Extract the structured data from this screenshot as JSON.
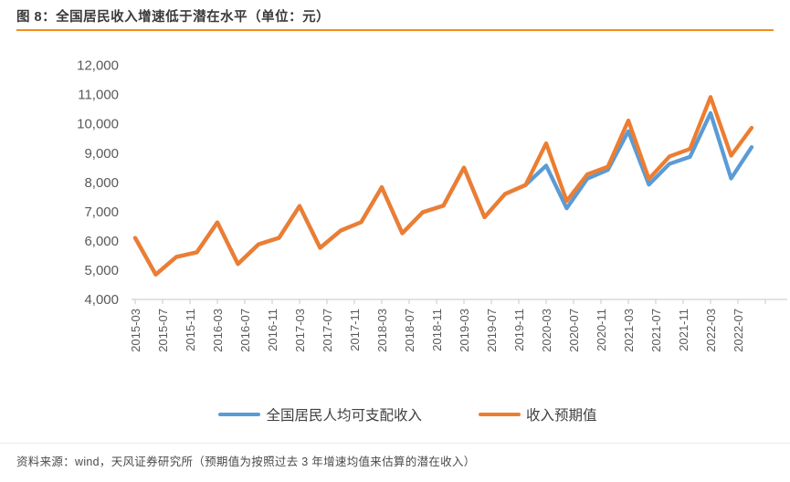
{
  "page": {
    "title": "图 8：全国居民收入增速低于潜在水平（单位：元）",
    "source_note": "资料来源：wind，天风证券研究所（预期值为按照过去 3 年增速均值来估算的潜在收入）"
  },
  "colors": {
    "actual_line": "#5B9BD5",
    "expected_line": "#ED7D31",
    "accent_rule": "#F28D1E",
    "axis_line": "#D9D9D9",
    "axis_tick": "#C8C8C8",
    "label_text": "#595959",
    "title_text": "#3A3A3A"
  },
  "chart_data": {
    "type": "line",
    "title": "图 8：全国居民收入增速低于潜在水平（单位：元）",
    "xlabel": "",
    "ylabel": "",
    "unit": "元",
    "ylim": [
      4000,
      12000
    ],
    "ytick_step": 1000,
    "grid": false,
    "legend_position": "bottom",
    "y_tick_labels": [
      "4,000",
      "5,000",
      "6,000",
      "7,000",
      "8,000",
      "9,000",
      "10,000",
      "11,000",
      "12,000"
    ],
    "x_tick_labels": [
      "2015-03",
      "2015-07",
      "2015-11",
      "2016-03",
      "2016-07",
      "2016-11",
      "2017-03",
      "2017-07",
      "2017-11",
      "2018-03",
      "2018-07",
      "2018-11",
      "2019-03",
      "2019-07",
      "2019-11",
      "2020-03",
      "2020-07",
      "2020-11",
      "2021-03",
      "2021-07",
      "2021-11",
      "2022-03",
      "2022-07"
    ],
    "x": [
      "2015-03",
      "2015-06",
      "2015-09",
      "2015-12",
      "2016-03",
      "2016-06",
      "2016-09",
      "2016-12",
      "2017-03",
      "2017-06",
      "2017-09",
      "2017-12",
      "2018-03",
      "2018-06",
      "2018-09",
      "2018-12",
      "2019-03",
      "2019-06",
      "2019-09",
      "2019-12",
      "2020-03",
      "2020-06",
      "2020-09",
      "2020-12",
      "2021-03",
      "2021-06",
      "2021-09",
      "2021-12",
      "2022-03",
      "2022-06",
      "2022-09"
    ],
    "series": [
      {
        "id": "actual",
        "name": "全国居民人均可支配收入",
        "color_key": "actual_line",
        "values": [
          6090,
          4840,
          5440,
          5600,
          6620,
          5200,
          5870,
          6090,
          7180,
          5750,
          6340,
          6630,
          7820,
          6250,
          6970,
          7190,
          8490,
          6800,
          7590,
          7900,
          8560,
          7100,
          8110,
          8410,
          9730,
          7910,
          8620,
          8860,
          10350,
          8120,
          9190
        ]
      },
      {
        "id": "expected",
        "name": "收入预期值",
        "color_key": "expected_line",
        "values": [
          6090,
          4840,
          5440,
          5600,
          6620,
          5200,
          5870,
          6090,
          7180,
          5750,
          6340,
          6630,
          7820,
          6250,
          6970,
          7190,
          8490,
          6800,
          7590,
          7900,
          9320,
          7350,
          8260,
          8520,
          10100,
          8100,
          8870,
          9130,
          10900,
          8900,
          9850
        ]
      }
    ]
  },
  "legend": {
    "items": [
      {
        "label": "全国居民人均可支配收入",
        "color_key": "actual_line"
      },
      {
        "label": "收入预期值",
        "color_key": "expected_line"
      }
    ]
  }
}
